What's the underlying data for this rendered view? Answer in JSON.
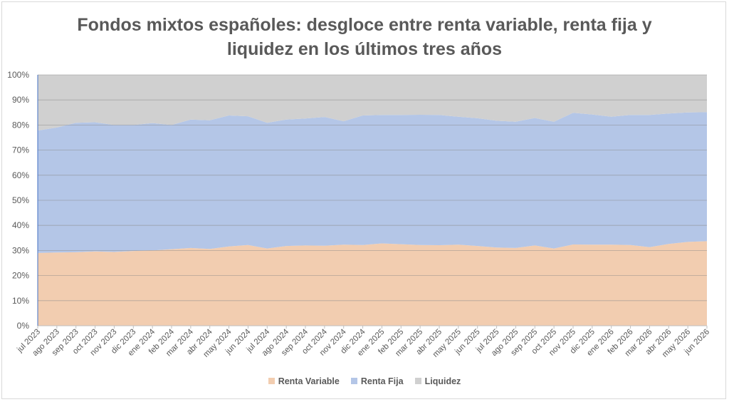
{
  "chart_data": {
    "type": "area",
    "stacked": true,
    "normalized_percent": true,
    "title_line1": "Fondos mixtos españoles: desgloce entre renta variable, renta fija y",
    "title_line2": "liquidez en los últimos tres años",
    "categories": [
      "jul 2023",
      "ago 2023",
      "sep 2023",
      "oct 2023",
      "nov 2023",
      "dic 2023",
      "ene 2024",
      "feb 2024",
      "mar 2024",
      "abr 2024",
      "may 2024",
      "jun 2024",
      "jul 2024",
      "ago 2024",
      "sep 2024",
      "oct 2024",
      "nov 2024",
      "dic 2024",
      "ene 2025",
      "feb 2025",
      "mar 2025",
      "abr 2025",
      "may 2025",
      "jun 2025",
      "jul 2025",
      "ago 2025",
      "sep 2025",
      "oct 2025",
      "nov 2025",
      "dic 2025",
      "ene 2026",
      "feb 2026",
      "mar 2026",
      "abr 2026",
      "may 2026",
      "jun 2026"
    ],
    "series": [
      {
        "name": "Renta Variable",
        "color": "#f2cdb0",
        "values": [
          29.0,
          29.2,
          29.3,
          29.6,
          29.4,
          29.8,
          30.0,
          30.5,
          31.0,
          30.6,
          31.6,
          32.2,
          30.8,
          31.8,
          32.0,
          31.9,
          32.3,
          32.2,
          32.8,
          32.5,
          32.2,
          32.1,
          32.3,
          31.8,
          31.2,
          31.0,
          32.0,
          30.8,
          32.4,
          32.3,
          32.3,
          32.2,
          31.3,
          32.6,
          33.4,
          33.7
        ]
      },
      {
        "name": "Renta Fija",
        "color": "#b4c6e7",
        "values": [
          48.8,
          49.8,
          51.6,
          51.5,
          50.6,
          50.2,
          50.8,
          49.5,
          51.2,
          51.3,
          52.2,
          51.3,
          50.1,
          50.4,
          50.6,
          51.3,
          49.2,
          51.6,
          51.2,
          51.5,
          51.9,
          51.9,
          51.0,
          50.9,
          50.5,
          50.3,
          50.8,
          50.5,
          52.5,
          51.9,
          51.0,
          51.8,
          52.7,
          52.0,
          51.6,
          51.4
        ]
      },
      {
        "name": "Liquidez",
        "color": "#d0d0d0",
        "values": [
          22.2,
          21.0,
          19.1,
          18.9,
          20.0,
          20.0,
          19.2,
          20.0,
          17.8,
          18.1,
          16.2,
          16.5,
          19.1,
          17.8,
          17.4,
          16.8,
          18.5,
          16.2,
          16.0,
          16.0,
          15.9,
          16.0,
          16.7,
          17.3,
          18.3,
          18.7,
          17.2,
          18.7,
          15.1,
          15.8,
          16.7,
          16.0,
          16.0,
          15.4,
          15.0,
          14.9
        ]
      }
    ],
    "y_tick_labels": [
      "0%",
      "10%",
      "20%",
      "30%",
      "40%",
      "50%",
      "60%",
      "70%",
      "80%",
      "90%",
      "100%"
    ],
    "ylim": [
      0,
      100
    ],
    "grid": true,
    "legend_position": "bottom"
  }
}
